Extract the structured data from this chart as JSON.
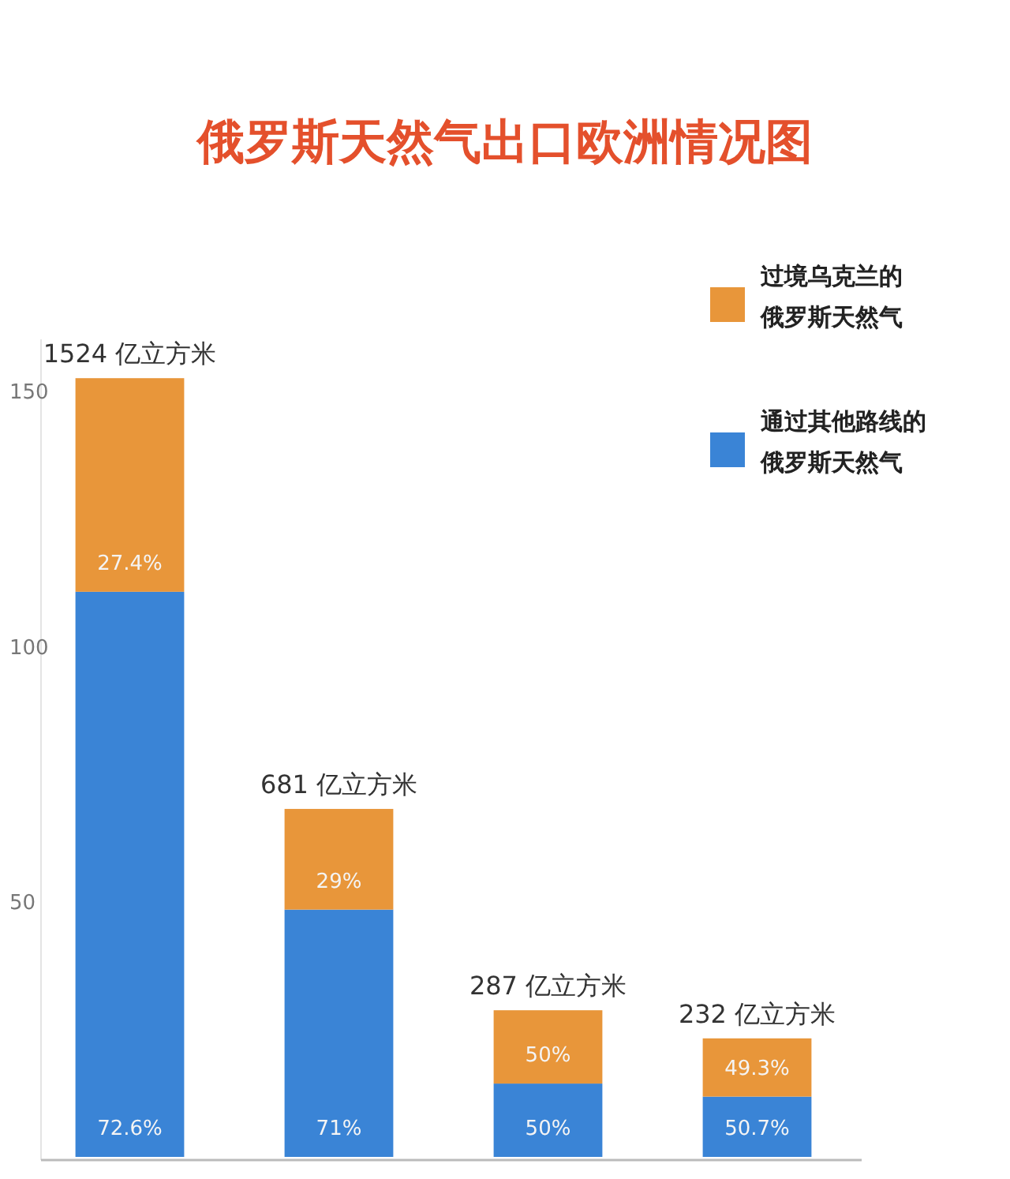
{
  "chart_data": {
    "type": "bar",
    "title": "俄罗斯天然气出口欧洲情况图",
    "categories": [
      null,
      null,
      null,
      null
    ],
    "stacked": true,
    "series": [
      {
        "name": "通过其他路线的俄罗斯天然气",
        "color": "#3a84d6",
        "values": [
          110.6,
          48.4,
          14.35,
          11.8
        ]
      },
      {
        "name": "过境乌克兰的俄罗斯天然气",
        "color": "#e8963a",
        "values": [
          41.8,
          19.7,
          14.35,
          11.4
        ]
      }
    ],
    "annotations": [
      "72.6%",
      "27.4%",
      "1524 亿立方米",
      "71%",
      "29%",
      "681 亿立方米",
      "50%",
      "50%",
      "287 亿立方米",
      "50.7%",
      "49.3%",
      "232 亿立方米"
    ],
    "ylim": [
      0,
      160
    ],
    "yticks": [
      50,
      100,
      150
    ],
    "legend": "top right"
  }
}
